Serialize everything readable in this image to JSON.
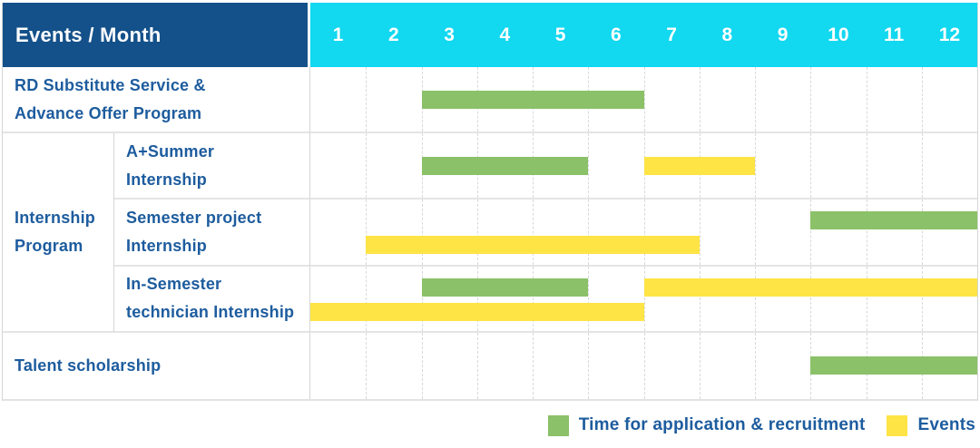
{
  "header": {
    "events_label": "Events / Month",
    "months": [
      "1",
      "2",
      "3",
      "4",
      "5",
      "6",
      "7",
      "8",
      "9",
      "10",
      "11",
      "12"
    ]
  },
  "colors": {
    "header_bg": "#14518a",
    "months_bg": "#12d8f0",
    "green": "#8bc168",
    "yellow": "#ffe445",
    "text_blue": "#1d5c9e",
    "grid_line": "#d9d9d9"
  },
  "legend": [
    {
      "color": "green",
      "label": "Time for application & recruitment"
    },
    {
      "color": "yellow",
      "label": "Events"
    }
  ],
  "chart_data": {
    "type": "gantt",
    "unit": "month",
    "x_range": [
      1,
      12
    ],
    "months": [
      1,
      2,
      3,
      4,
      5,
      6,
      7,
      8,
      9,
      10,
      11,
      12
    ],
    "bar_meaning": {
      "green": "Time for application & recruitment",
      "yellow": "Events"
    },
    "group_label": "Internship Program",
    "group_label_lines": [
      "Internship",
      "Program"
    ],
    "rows": [
      {
        "id": "rd-substitute",
        "group": null,
        "label": "RD Substitute Service & Advance Offer Program",
        "label_lines": [
          "RD Substitute Service &",
          "Advance Offer Program"
        ],
        "bars": [
          {
            "color": "green",
            "start": 3,
            "end": 6,
            "line": "single"
          }
        ]
      },
      {
        "id": "a-summer-internship",
        "group": "Internship Program",
        "label": "A+Summer Internship",
        "label_lines": [
          "A+Summer",
          "Internship"
        ],
        "bars": [
          {
            "color": "green",
            "start": 3,
            "end": 5,
            "line": "single"
          },
          {
            "color": "yellow",
            "start": 7,
            "end": 8,
            "line": "single"
          }
        ]
      },
      {
        "id": "semester-project-internship",
        "group": "Internship Program",
        "label": "Semester project Internship",
        "label_lines": [
          "Semester project",
          "Internship"
        ],
        "bars": [
          {
            "color": "green",
            "start": 10,
            "end": 12,
            "line": "top"
          },
          {
            "color": "yellow",
            "start": 2,
            "end": 7,
            "line": "bottom"
          }
        ]
      },
      {
        "id": "in-semester-technician-internship",
        "group": "Internship Program",
        "label": "In-Semester technician Internship",
        "label_lines": [
          "In-Semester",
          "technician Internship"
        ],
        "bars": [
          {
            "color": "green",
            "start": 3,
            "end": 5,
            "line": "top"
          },
          {
            "color": "yellow",
            "start": 7,
            "end": 12,
            "line": "top"
          },
          {
            "color": "yellow",
            "start": 1,
            "end": 6,
            "line": "bottom"
          }
        ]
      },
      {
        "id": "talent-scholarship",
        "group": null,
        "label": "Talent scholarship",
        "label_lines": [
          "Talent scholarship"
        ],
        "bars": [
          {
            "color": "green",
            "start": 10,
            "end": 12,
            "line": "single"
          }
        ]
      }
    ]
  }
}
